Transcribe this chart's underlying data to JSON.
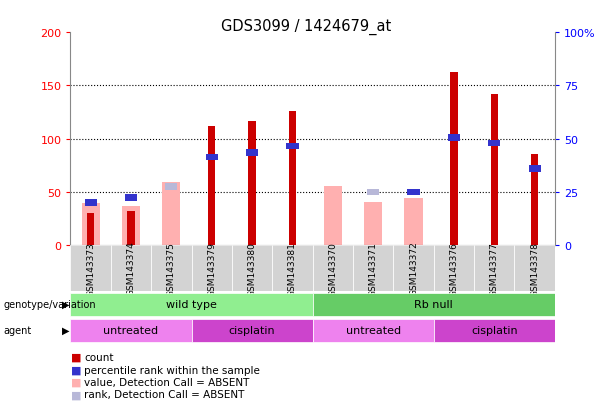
{
  "title": "GDS3099 / 1424679_at",
  "samples": [
    "GSM143373",
    "GSM143374",
    "GSM143375",
    "GSM143379",
    "GSM143380",
    "GSM143381",
    "GSM143370",
    "GSM143371",
    "GSM143372",
    "GSM143376",
    "GSM143377",
    "GSM143378"
  ],
  "count_values": [
    30,
    32,
    null,
    112,
    117,
    126,
    null,
    null,
    null,
    163,
    142,
    86
  ],
  "value_absent": [
    40,
    37,
    59,
    null,
    null,
    null,
    56,
    41,
    44,
    null,
    null,
    null
  ],
  "rank_values": [
    40,
    45,
    null,
    83,
    87,
    93,
    null,
    null,
    50,
    101,
    96,
    72
  ],
  "rank_absent": [
    null,
    null,
    55,
    null,
    null,
    null,
    null,
    50,
    50,
    null,
    null,
    null
  ],
  "genotype_colors": [
    "#90ee90",
    "#66cc66"
  ],
  "genotype_labels": [
    "wild type",
    "Rb null"
  ],
  "genotype_ranges": [
    [
      0,
      6
    ],
    [
      6,
      12
    ]
  ],
  "agent_colors": [
    "#ee82ee",
    "#cc44cc",
    "#ee82ee",
    "#cc44cc"
  ],
  "agent_labels": [
    "untreated",
    "cisplatin",
    "untreated",
    "cisplatin"
  ],
  "agent_ranges": [
    [
      0,
      3
    ],
    [
      3,
      6
    ],
    [
      6,
      9
    ],
    [
      9,
      12
    ]
  ],
  "ylim": [
    0,
    200
  ],
  "yticks_left": [
    0,
    50,
    100,
    150,
    200
  ],
  "ytick_labels_right": [
    "0",
    "25",
    "50",
    "75",
    "100%"
  ],
  "colors": {
    "count": "#cc0000",
    "rank": "#3333cc",
    "value_absent": "#ffb0b0",
    "rank_absent": "#b8b8d8",
    "bg_label": "#d3d3d3",
    "genotype_wt": "#90ee90",
    "genotype_rb": "#66cc66",
    "agent_untreated": "#ee82ee",
    "agent_cisplatin": "#cc44cc"
  }
}
